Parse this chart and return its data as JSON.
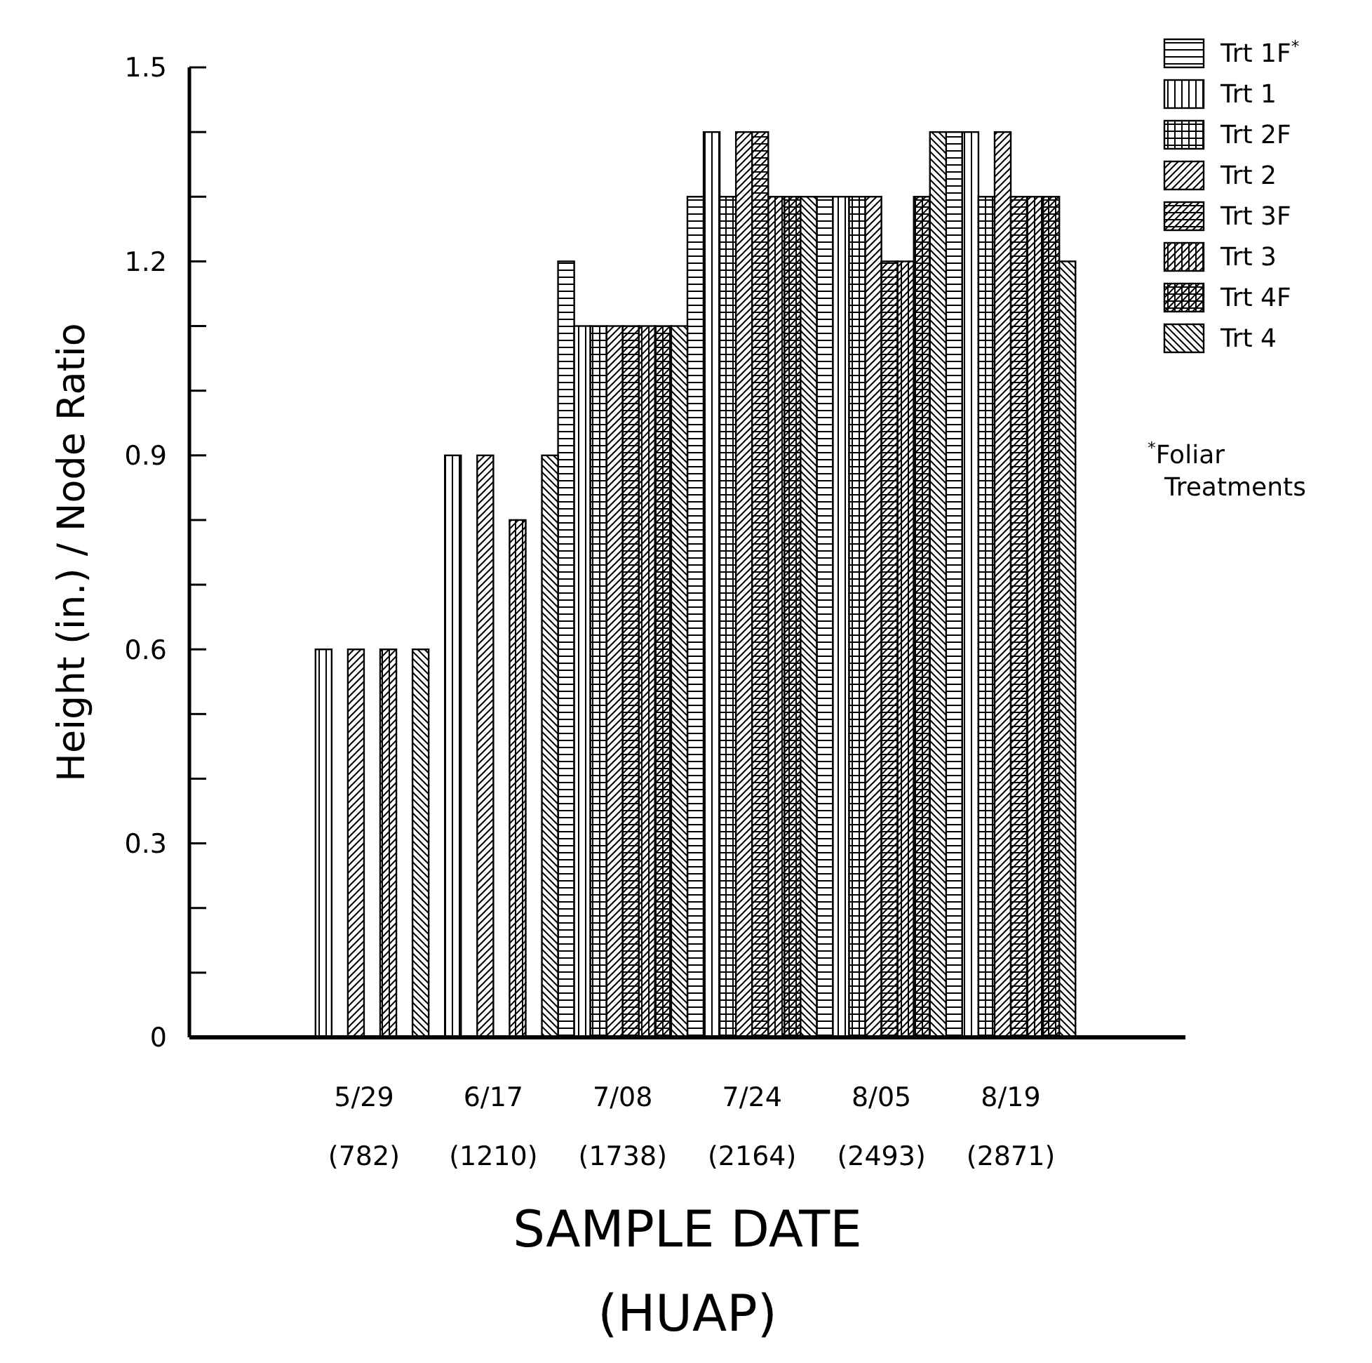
{
  "chart_data": {
    "type": "bar",
    "ylabel": "Height (in.) / Node Ratio",
    "xlabel": "SAMPLE DATE\n(HUAP)",
    "categories": [
      "5/29\n(782)",
      "6/17\n(1210)",
      "7/08\n(1738)",
      "7/24\n(2164)",
      "8/05\n(2493)",
      "8/19\n(2871)"
    ],
    "series": [
      {
        "name": "Trt 1F$^{*}$",
        "color": "#000000",
        "values": [
          null,
          null,
          1.2,
          1.3,
          1.3,
          1.4
        ]
      },
      {
        "name": "Trt 1",
        "color": "#000000",
        "values": [
          0.6,
          0.9,
          1.1,
          1.4,
          1.3,
          1.4
        ]
      },
      {
        "name": "Trt 2F",
        "color": "#000000",
        "values": [
          null,
          null,
          1.1,
          1.3,
          1.3,
          1.3
        ]
      },
      {
        "name": "Trt 2",
        "color": "#000000",
        "values": [
          0.6,
          0.9,
          1.1,
          1.4,
          1.3,
          1.4
        ]
      },
      {
        "name": "Trt 3F",
        "color": "#000000",
        "values": [
          null,
          null,
          1.1,
          1.4,
          1.2,
          1.3
        ]
      },
      {
        "name": "Trt 3",
        "color": "#000000",
        "values": [
          0.6,
          0.8,
          1.1,
          1.3,
          1.2,
          1.3
        ]
      },
      {
        "name": "Trt 4F",
        "color": "#000000",
        "values": [
          null,
          null,
          1.1,
          1.3,
          1.3,
          1.3
        ]
      },
      {
        "name": "Trt 4",
        "color": "#000000",
        "values": [
          0.6,
          0.9,
          1.1,
          1.3,
          1.4,
          1.2
        ]
      }
    ],
    "ylim": [
      0,
      1.5
    ],
    "yticks": [
      0,
      {
        "value": 0.1,
        "label": null
      },
      {
        "value": 0.2,
        "label": null
      },
      0.3,
      {
        "value": 0.4,
        "label": null
      },
      {
        "value": 0.5,
        "label": null
      },
      0.6,
      {
        "value": 0.7,
        "label": null
      },
      {
        "value": 0.8,
        "label": null
      },
      0.9,
      {
        "value": 1.0,
        "label": null
      },
      {
        "value": 1.1,
        "label": null
      },
      1.2,
      {
        "value": 1.3,
        "label": null
      },
      {
        "value": 1.4,
        "label": null
      },
      1.5
    ],
    "grid": false,
    "legend": "top right",
    "annotations": [
      "$^{*}$Foliar Treatments"
    ]
  }
}
